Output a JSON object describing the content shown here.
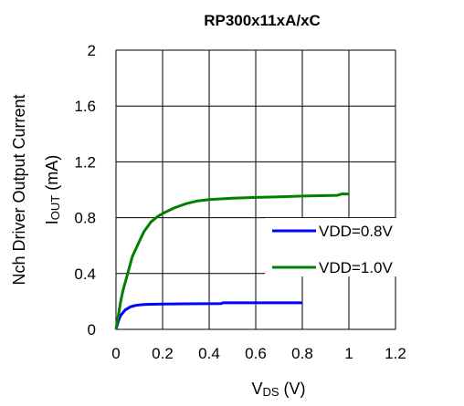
{
  "chart_data": {
    "type": "line",
    "title": "RP300x11xA/xC",
    "xlabel_main": "V",
    "xlabel_sub": "DS",
    "xlabel_unit": " (V)",
    "ylabel_line1": "Nch Driver Output Current",
    "ylabel_main": "I",
    "ylabel_sub": "OUT",
    "ylabel_unit": " (mA)",
    "xlim": [
      0,
      1.2
    ],
    "ylim": [
      0,
      2
    ],
    "xticks": [
      "0",
      "0.2",
      "0.4",
      "0.6",
      "0.8",
      "1",
      "1.2"
    ],
    "xtick_values": [
      0,
      0.2,
      0.4,
      0.6,
      0.8,
      1.0,
      1.2
    ],
    "yticks": [
      "0",
      "0.4",
      "0.8",
      "1.2",
      "1.6",
      "2"
    ],
    "ytick_values": [
      0,
      0.4,
      0.8,
      1.2,
      1.6,
      2.0
    ],
    "grid": true,
    "legend_position": "center-right",
    "series": [
      {
        "name": "VDD=0.8V",
        "color": "#0000ff",
        "x": [
          0,
          0.005,
          0.01,
          0.02,
          0.03,
          0.04,
          0.05,
          0.06,
          0.08,
          0.1,
          0.12,
          0.15,
          0.2,
          0.3,
          0.45,
          0.46,
          0.6,
          0.8
        ],
        "y": [
          0,
          0.03,
          0.06,
          0.1,
          0.12,
          0.14,
          0.15,
          0.16,
          0.17,
          0.175,
          0.178,
          0.18,
          0.182,
          0.183,
          0.184,
          0.19,
          0.19,
          0.19
        ]
      },
      {
        "name": "VDD=1.0V",
        "color": "#008000",
        "x": [
          0,
          0.01,
          0.02,
          0.03,
          0.05,
          0.07,
          0.1,
          0.12,
          0.15,
          0.18,
          0.2,
          0.25,
          0.3,
          0.35,
          0.4,
          0.5,
          0.6,
          0.7,
          0.8,
          0.9,
          0.95,
          0.97,
          1.0
        ],
        "y": [
          0,
          0.1,
          0.2,
          0.28,
          0.4,
          0.52,
          0.63,
          0.7,
          0.77,
          0.81,
          0.83,
          0.87,
          0.9,
          0.92,
          0.93,
          0.94,
          0.945,
          0.95,
          0.955,
          0.958,
          0.96,
          0.97,
          0.97
        ]
      }
    ]
  }
}
